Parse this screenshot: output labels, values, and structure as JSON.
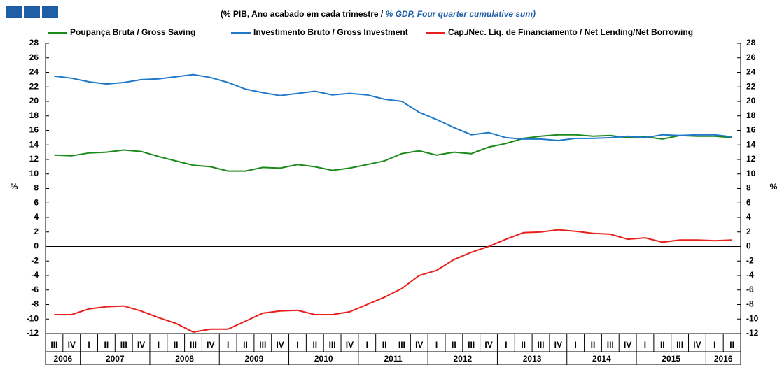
{
  "chart_data": {
    "type": "line",
    "title": "(% PIB, Ano acabado em cada trimestre /",
    "title_en": "% GDP, Four quarter cumulative sum)",
    "y_label": "%",
    "y2_label": "%",
    "categories": [
      "III",
      "IV",
      "I",
      "II",
      "III",
      "IV",
      "I",
      "II",
      "III",
      "IV",
      "I",
      "II",
      "III",
      "IV",
      "I",
      "II",
      "III",
      "IV",
      "I",
      "II",
      "III",
      "IV",
      "I",
      "II",
      "III",
      "IV",
      "I",
      "II",
      "III",
      "IV",
      "I",
      "II",
      "III",
      "IV",
      "I",
      "II",
      "III",
      "IV",
      "I",
      "II"
    ],
    "years": [
      "2006",
      "2007",
      "2008",
      "2009",
      "2010",
      "2011",
      "2012",
      "2013",
      "2014",
      "2015",
      "2016"
    ],
    "ylim": [
      -12,
      28
    ],
    "yticks": [
      -12,
      -10,
      -8,
      -6,
      -4,
      -2,
      0,
      2,
      4,
      6,
      8,
      10,
      12,
      14,
      16,
      18,
      20,
      22,
      24,
      26,
      28
    ],
    "y2lim": [
      -12,
      28
    ],
    "y2ticks": [
      -12,
      -10,
      -8,
      -6,
      -4,
      -2,
      0,
      2,
      4,
      6,
      8,
      10,
      12,
      14,
      16,
      18,
      20,
      22,
      24,
      26,
      28
    ],
    "series": [
      {
        "name": "Poupança Bruta / Gross Saving",
        "color": "#1a8a1a",
        "values": [
          12.6,
          12.5,
          12.9,
          13.0,
          13.3,
          13.1,
          12.4,
          11.8,
          11.2,
          11.0,
          10.4,
          10.4,
          10.9,
          10.8,
          11.3,
          11.0,
          10.5,
          10.8,
          11.3,
          11.8,
          12.8,
          13.2,
          12.6,
          13.0,
          12.8,
          13.7,
          14.2,
          14.9,
          15.2,
          15.4,
          15.4,
          15.2,
          15.3,
          15.0,
          15.1,
          14.8,
          15.3,
          15.2,
          15.2,
          15.0
        ]
      },
      {
        "name": "Investimento Bruto / Gross Investment",
        "color": "#1f78c8",
        "values": [
          23.5,
          23.2,
          22.7,
          22.4,
          22.6,
          23.0,
          23.1,
          23.4,
          23.7,
          23.3,
          22.6,
          21.7,
          21.2,
          20.8,
          21.1,
          21.4,
          20.9,
          21.1,
          20.9,
          20.3,
          20.0,
          18.5,
          17.5,
          16.4,
          15.4,
          15.7,
          15.0,
          14.8,
          14.8,
          14.6,
          14.9,
          14.9,
          15.0,
          15.2,
          15.0,
          15.4,
          15.3,
          15.4,
          15.4,
          15.1
        ]
      },
      {
        "name": "Cap./Nec. Líq. de Financiamento / Net Lending/Net Borrowing",
        "color": "#e8201c",
        "values": [
          -9.4,
          -9.4,
          -8.6,
          -8.3,
          -8.2,
          -8.9,
          -9.8,
          -10.6,
          -11.8,
          -11.4,
          -11.4,
          -10.3,
          -9.2,
          -8.9,
          -8.8,
          -9.4,
          -9.4,
          -9.0,
          -8.0,
          -7.0,
          -5.8,
          -4.0,
          -3.3,
          -1.8,
          -0.8,
          0.0,
          1.0,
          1.9,
          2.0,
          2.3,
          2.1,
          1.8,
          1.7,
          1.0,
          1.2,
          0.6,
          0.9,
          0.9,
          0.8,
          0.9
        ]
      }
    ]
  }
}
